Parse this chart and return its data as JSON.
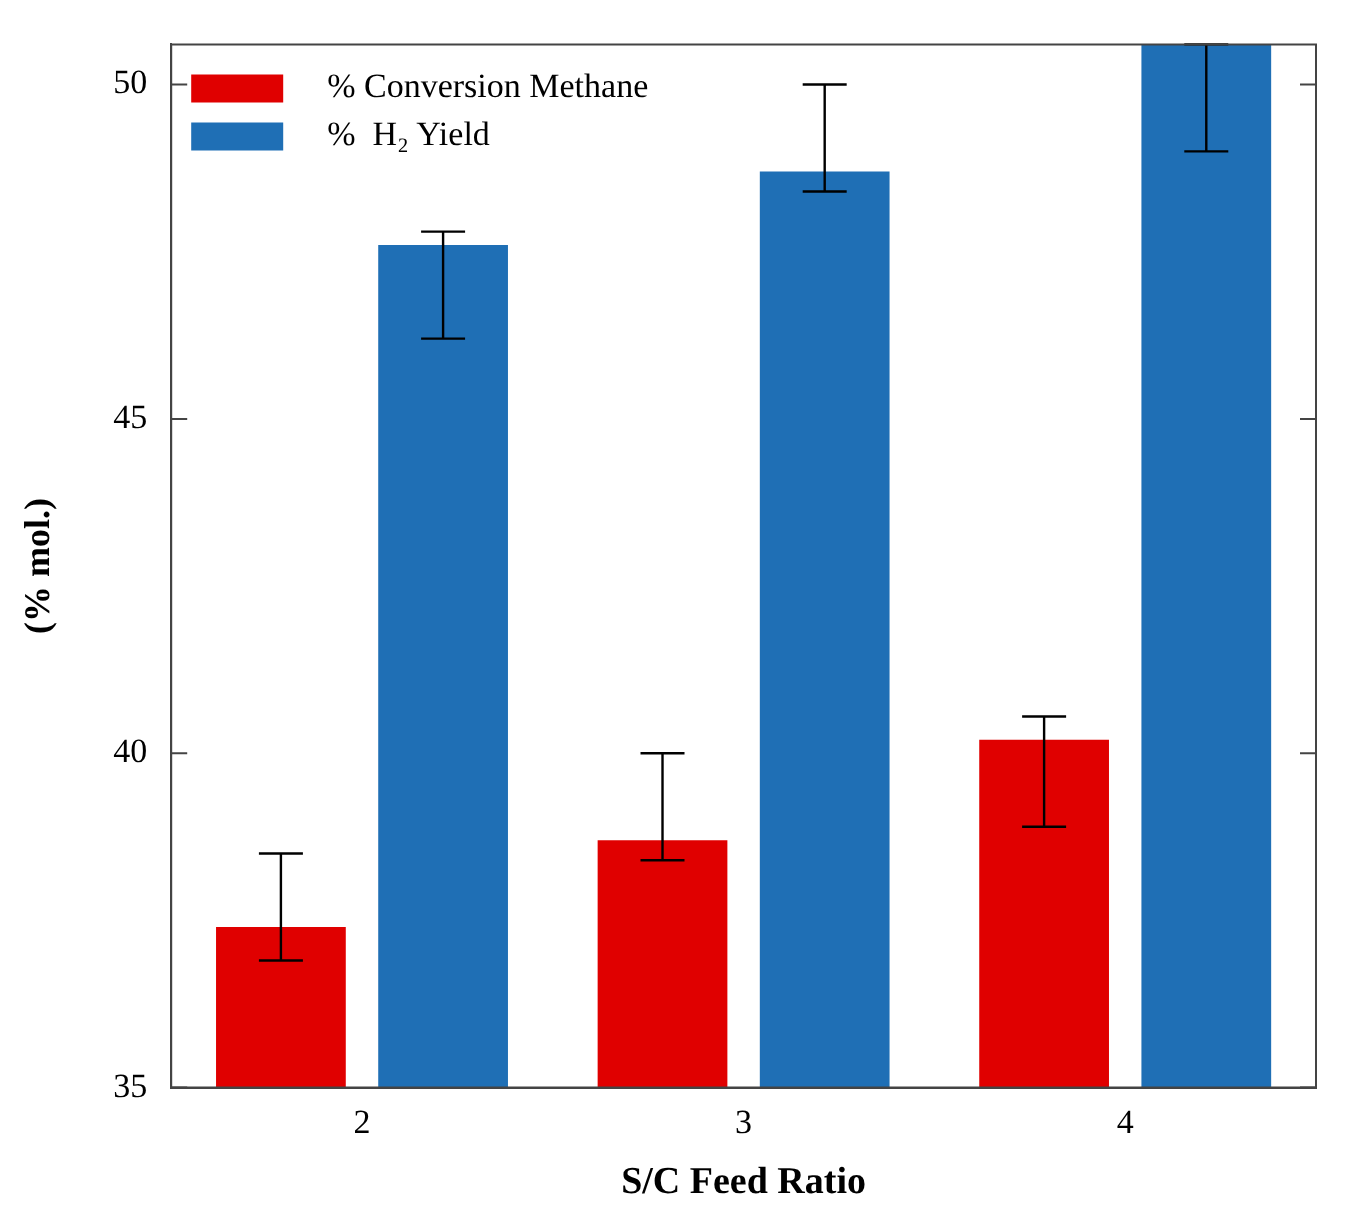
{
  "chart_data": {
    "type": "bar",
    "categories": [
      "2",
      "3",
      "4"
    ],
    "xlabel": "S/C Feed Ratio",
    "ylabel": "(% mol.)",
    "series": [
      {
        "name": "% Conversion Methane",
        "color": "#e00000",
        "values": [
          37.4,
          38.7,
          40.2
        ],
        "errors": [
          [
            36.9,
            38.5
          ],
          [
            38.4,
            40.0
          ],
          [
            38.9,
            40.55
          ]
        ]
      },
      {
        "name": "%  H₂ Yield",
        "color": "#1f6fb5",
        "values": [
          47.6,
          48.7,
          50.6
        ],
        "errors": [
          [
            46.2,
            47.8
          ],
          [
            48.4,
            50.0
          ],
          [
            49.0,
            50.6
          ]
        ]
      }
    ],
    "ylim": [
      35,
      50.6
    ],
    "yticks": [
      35,
      40,
      45,
      50
    ],
    "grid": false,
    "legend": "top left"
  }
}
